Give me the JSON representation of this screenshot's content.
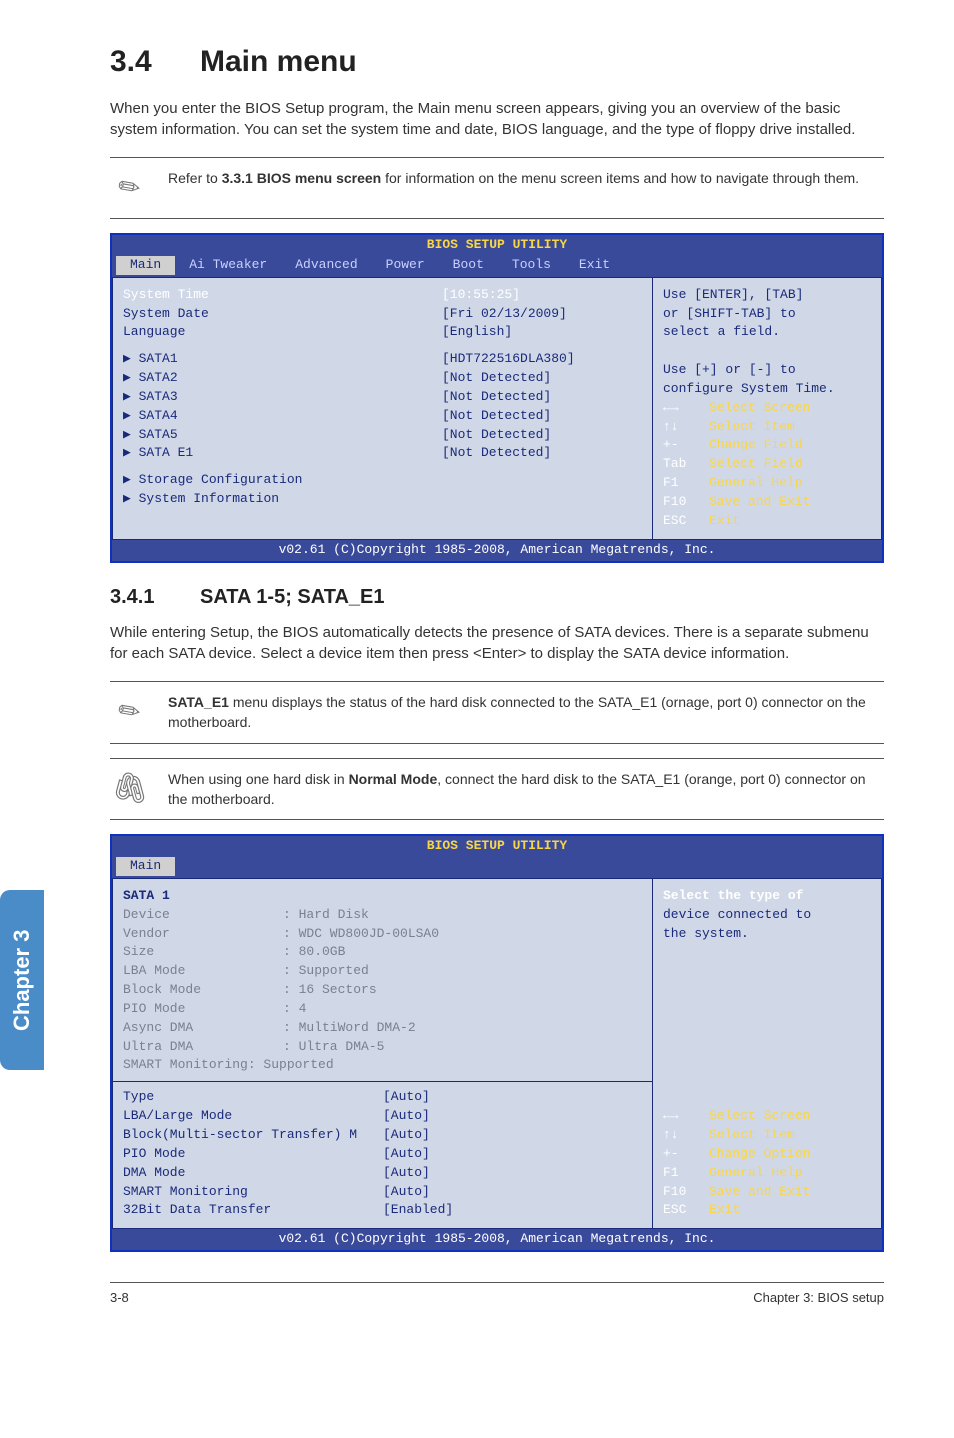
{
  "sideTab": "Chapter 3",
  "section": {
    "num": "3.4",
    "title": "Main menu",
    "intro": "When you enter the BIOS Setup program, the Main menu screen appears, giving you an overview of the basic system information. You can set the system time and date, BIOS language, and the type of floppy drive installed."
  },
  "note1": {
    "prefix": "Refer to ",
    "bold": "3.3.1 BIOS menu screen",
    "suffix": " for information on the menu screen items and how to navigate through them."
  },
  "bios1": {
    "header": "BIOS SETUP UTILITY",
    "menu": [
      "Main",
      "Ai Tweaker",
      "Advanced",
      "Power",
      "Boot",
      "Tools",
      "Exit"
    ],
    "activeMenu": "Main",
    "rowsTop": [
      {
        "label": "System Time",
        "val": "[10:55:25]",
        "white": true
      },
      {
        "label": "System Date",
        "val": "[Fri 02/13/2009]"
      },
      {
        "label": "Language",
        "val": "[English]"
      }
    ],
    "rowsSata": [
      {
        "label": "SATA1",
        "val": "[HDT722516DLA380]"
      },
      {
        "label": "SATA2",
        "val": "[Not Detected]"
      },
      {
        "label": "SATA3",
        "val": "[Not Detected]"
      },
      {
        "label": "SATA4",
        "val": "[Not Detected]"
      },
      {
        "label": "SATA5",
        "val": "[Not Detected]"
      },
      {
        "label": "SATA E1",
        "val": "[Not Detected]"
      }
    ],
    "rowsBottom": [
      {
        "label": "Storage Configuration"
      },
      {
        "label": "System Information"
      }
    ],
    "helpTop": [
      "Use [ENTER], [TAB]",
      "or [SHIFT-TAB] to",
      "select a field.",
      "",
      "Use [+] or [-] to",
      "configure System Time."
    ],
    "keys": [
      {
        "k": "←→",
        "d": "Select Screen"
      },
      {
        "k": "↑↓",
        "d": "Select Item"
      },
      {
        "k": "+-",
        "d": "Change Field"
      },
      {
        "k": "Tab",
        "d": "Select Field"
      },
      {
        "k": "F1",
        "d": "General Help"
      },
      {
        "k": "F10",
        "d": "Save and Exit"
      },
      {
        "k": "ESC",
        "d": "Exit"
      }
    ],
    "footer": "v02.61 (C)Copyright 1985-2008, American Megatrends, Inc."
  },
  "sub": {
    "num": "3.4.1",
    "title": "SATA 1-5; SATA_E1",
    "body": "While entering Setup, the BIOS automatically detects the presence of SATA devices. There is a separate submenu for each SATA device. Select a device item then press <Enter> to display the SATA device information."
  },
  "note2": {
    "bold": "SATA_E1",
    "rest": " menu displays the status of the hard disk connected to the SATA_E1 (ornage, port 0) connector on the motherboard."
  },
  "note3": {
    "p1": "When using one hard disk in ",
    "bold": "Normal Mode",
    "p2": ", connect the hard disk to the SATA_E1 (orange, port 0) connector on the motherboard."
  },
  "bios2": {
    "header": "BIOS SETUP UTILITY",
    "menuActive": "Main",
    "title": "SATA 1",
    "info": [
      {
        "l": "Device",
        "v": ": Hard Disk"
      },
      {
        "l": "Vendor",
        "v": ": WDC WD800JD-00LSA0"
      },
      {
        "l": "Size",
        "v": ": 80.0GB"
      },
      {
        "l": "LBA Mode",
        "v": ": Supported"
      },
      {
        "l": "Block Mode",
        "v": ": 16 Sectors"
      },
      {
        "l": "PIO Mode",
        "v": ": 4"
      },
      {
        "l": "Async DMA",
        "v": ": MultiWord DMA-2"
      },
      {
        "l": "Ultra DMA",
        "v": ": Ultra DMA-5"
      },
      {
        "l": "SMART Monitoring",
        "v": ": Supported",
        "onecol": true
      }
    ],
    "settings": [
      {
        "l": "Type",
        "v": "[Auto]"
      },
      {
        "l": "LBA/Large Mode",
        "v": "[Auto]"
      },
      {
        "l": "Block(Multi-sector Transfer) M",
        "v": "[Auto]",
        "tight": true
      },
      {
        "l": "PIO Mode",
        "v": "[Auto]"
      },
      {
        "l": "DMA Mode",
        "v": "[Auto]"
      },
      {
        "l": "SMART Monitoring",
        "v": "[Auto]"
      },
      {
        "l": "32Bit Data Transfer",
        "v": "[Enabled]"
      }
    ],
    "helpTop": [
      "Select the type of",
      "device connected to",
      "the system."
    ],
    "keys": [
      {
        "k": "←→",
        "d": "Select Screen"
      },
      {
        "k": "↑↓",
        "d": "Select Item"
      },
      {
        "k": "+-",
        "d": "Change Option"
      },
      {
        "k": "F1",
        "d": "General Help"
      },
      {
        "k": "F10",
        "d": "Save and Exit"
      },
      {
        "k": "ESC",
        "d": "Exit"
      }
    ],
    "footer": "v02.61 (C)Copyright 1985-2008, American Megatrends, Inc."
  },
  "pageFooter": {
    "left": "3-8",
    "right": "Chapter 3: BIOS setup"
  }
}
